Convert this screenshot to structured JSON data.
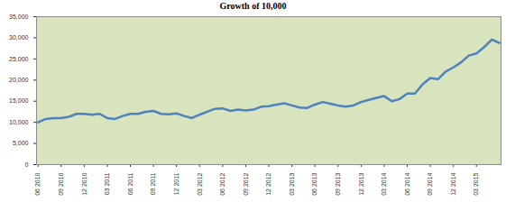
{
  "chart_data": {
    "type": "line",
    "title": "Growth of 10,000",
    "categories": [
      "06 2010",
      null,
      null,
      "09 2010",
      null,
      null,
      "12 2010",
      null,
      null,
      "03 2011",
      null,
      null,
      "06 2011",
      null,
      null,
      "09 2011",
      null,
      null,
      "12 2011",
      null,
      null,
      "03 2012",
      null,
      null,
      "06 2012",
      null,
      null,
      "09 2012",
      null,
      null,
      "12 2012",
      null,
      null,
      "03 2013",
      null,
      null,
      "06 2013",
      null,
      null,
      "09 2013",
      null,
      null,
      "12 2013",
      null,
      null,
      "03 2014",
      null,
      null,
      "06 2014",
      null,
      null,
      "09 2014",
      null,
      null,
      "12 2014",
      null,
      null,
      "03 2015",
      null,
      null,
      null
    ],
    "values": [
      10000,
      10800,
      11000,
      11000,
      11300,
      12000,
      12000,
      11800,
      12000,
      11000,
      10800,
      11500,
      12000,
      12000,
      12500,
      12700,
      12000,
      11900,
      12100,
      11500,
      11000,
      11800,
      12500,
      13200,
      13300,
      12700,
      13000,
      12800,
      13000,
      13700,
      13800,
      14200,
      14500,
      14000,
      13500,
      13400,
      14200,
      14800,
      14400,
      14000,
      13700,
      14000,
      14800,
      15300,
      15800,
      16200,
      15000,
      15500,
      16800,
      16800,
      19000,
      20500,
      20200,
      22000,
      23000,
      24200,
      25800,
      26300,
      27800,
      29600,
      28800
    ],
    "color": "#4f81bd",
    "ylim": [
      0,
      35000
    ],
    "yticks": [
      0,
      {
        "value": 5000,
        "label": "5,000"
      },
      {
        "value": 10000,
        "label": "10,000"
      },
      {
        "value": 15000,
        "label": "15,000"
      },
      {
        "value": 20000,
        "label": "20,000"
      },
      {
        "value": 25000,
        "label": "25,000"
      },
      {
        "value": 30000,
        "label": "30,000"
      },
      {
        "value": 35000,
        "label": "35,000"
      }
    ],
    "grid": false
  }
}
